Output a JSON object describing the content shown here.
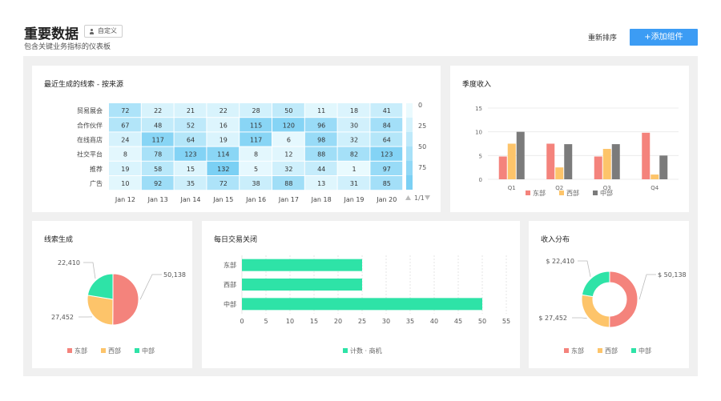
{
  "header": {
    "title": "重要数据",
    "custom_label": "自定义",
    "subtitle": "包含关键业务指标的仪表板",
    "reorder_label": "重新排序",
    "add_widget_label": "+添加组件"
  },
  "colors": {
    "east": "#f4837c",
    "west": "#fdc46a",
    "central": "#2ee3a7",
    "gray": "#7b7b7b",
    "accent": "#3c9cf4"
  },
  "leads_heatmap": {
    "title": "最近生成的线索 - 按来源",
    "columns": [
      "Jan 12",
      "Jan 13",
      "Jan 14",
      "Jan 15",
      "Jan 16",
      "Jan 17",
      "Jan 18",
      "Jan 19",
      "Jan 20"
    ],
    "rows": [
      "贸易展会",
      "合作伙伴",
      "在线商店",
      "社交平台",
      "推荐",
      "广告"
    ],
    "values": [
      [
        72,
        22,
        21,
        22,
        28,
        50,
        11,
        18,
        41
      ],
      [
        67,
        48,
        52,
        16,
        115,
        120,
        96,
        30,
        84
      ],
      [
        24,
        117,
        64,
        19,
        117,
        6,
        98,
        32,
        64
      ],
      [
        8,
        78,
        123,
        114,
        8,
        12,
        88,
        82,
        123
      ],
      [
        19,
        58,
        15,
        132,
        5,
        32,
        44,
        1,
        97
      ],
      [
        10,
        92,
        35,
        72,
        38,
        88,
        13,
        31,
        85
      ]
    ],
    "legend_ticks": [
      "0",
      "25",
      "50",
      "75"
    ],
    "pager": "1/1"
  },
  "charts": [
    {
      "type": "bar",
      "title": "季度收入",
      "categories": [
        "Q1",
        "Q2",
        "Q3",
        "Q4"
      ],
      "series": [
        {
          "name": "东部",
          "values": [
            4.8,
            7.5,
            4.8,
            9.8
          ]
        },
        {
          "name": "西部",
          "values": [
            7.5,
            2.5,
            6.4,
            1.0
          ]
        },
        {
          "name": "中部",
          "values": [
            10,
            7.4,
            7.4,
            5.0
          ]
        }
      ],
      "ylim": [
        0,
        15
      ],
      "yticks": [
        "0",
        "5",
        "10",
        "15"
      ]
    },
    {
      "type": "pie",
      "title": "线索生成",
      "labels": [
        "东部",
        "西部",
        "中部"
      ],
      "values": [
        50138,
        27452,
        22410
      ],
      "value_labels": [
        "50,138",
        "27,452",
        "22,410"
      ]
    },
    {
      "type": "bar",
      "orientation": "horizontal",
      "title": "每日交易关闭",
      "categories": [
        "东部",
        "西部",
        "中部"
      ],
      "series": [
        {
          "name": "计数 · 商机",
          "values": [
            25,
            25,
            50
          ]
        }
      ],
      "xlim": [
        0,
        55
      ],
      "xticks": [
        "0",
        "5",
        "10",
        "15",
        "20",
        "25",
        "30",
        "35",
        "40",
        "45",
        "50",
        "55"
      ]
    },
    {
      "type": "pie",
      "title": "收入分布",
      "labels": [
        "东部",
        "西部",
        "中部"
      ],
      "values": [
        50138,
        27452,
        22410
      ],
      "value_labels": [
        "$ 50,138",
        "$ 27,452",
        "$ 22,410"
      ]
    }
  ]
}
